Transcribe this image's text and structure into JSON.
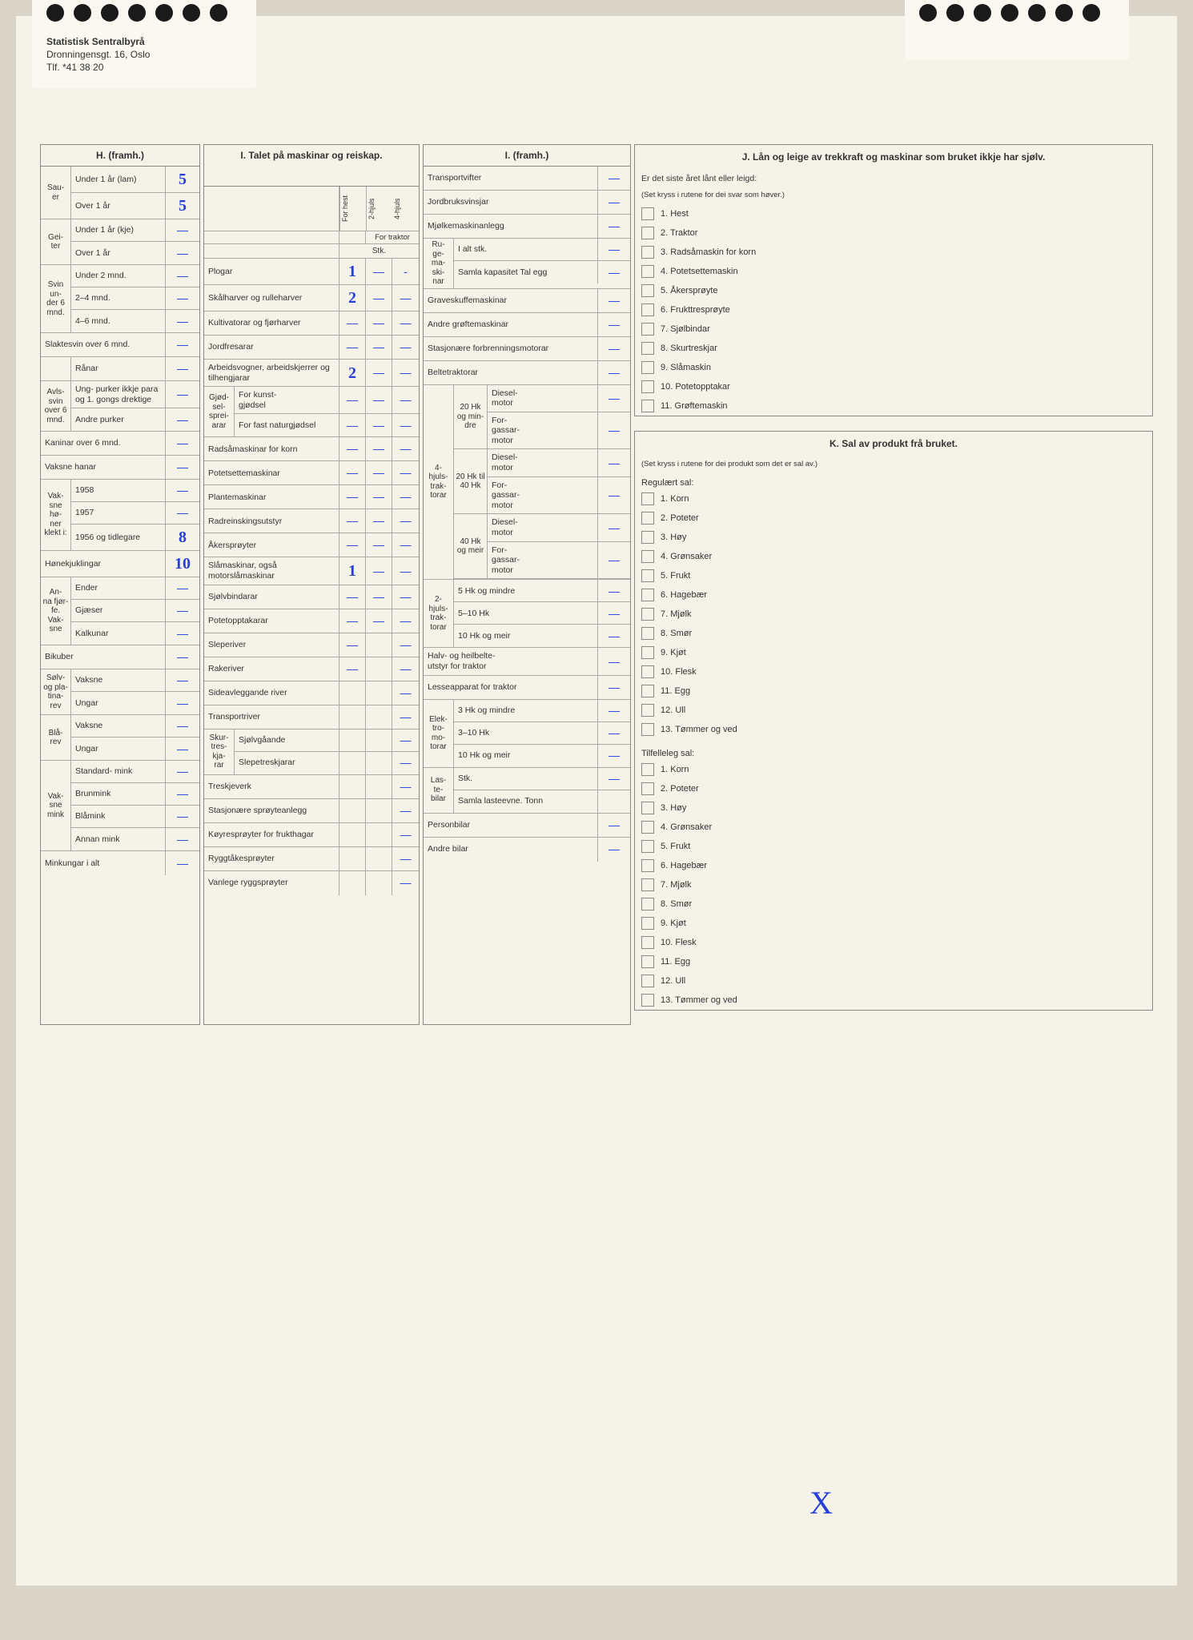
{
  "letterhead": {
    "org": "Statistisk Sentralbyrå",
    "addr": "Dronningensgt. 16, Oslo",
    "tlf": "Tlf. *41 38 20"
  },
  "secH": {
    "title": "H. (framh.)",
    "groups": [
      {
        "side": "Sau-\ner",
        "rows": [
          {
            "label": "Under 1 år (lam)",
            "val": "5"
          },
          {
            "label": "Over 1 år",
            "val": "5"
          }
        ]
      },
      {
        "side": "Gei-\nter",
        "rows": [
          {
            "label": "Under 1 år (kje)",
            "val": "—"
          },
          {
            "label": "Over 1 år",
            "val": "—"
          }
        ]
      },
      {
        "side": "Svin un-\nder 6 mnd.",
        "rows": [
          {
            "label": "Under 2 mnd.",
            "val": "—"
          },
          {
            "label": "2–4 mnd.",
            "val": "—"
          },
          {
            "label": "4–6 mnd.",
            "val": "—"
          }
        ]
      }
    ],
    "singleRows1": [
      {
        "label": "Slaktesvin over 6 mnd.",
        "val": "—"
      },
      {
        "label2": "Rånar",
        "val": "—"
      }
    ],
    "avls": {
      "side": "Avls-\nsvin over 6 mnd.",
      "rows": [
        {
          "label": "Ung-\npurker ikkje para og 1. gongs drektige",
          "val": "—"
        },
        {
          "label": "Andre purker",
          "val": "—"
        }
      ]
    },
    "singleRows2": [
      {
        "label": "Kaninar over 6 mnd.",
        "val": "—"
      },
      {
        "label": "Vaksne hanar",
        "val": "—"
      }
    ],
    "honer": {
      "side": "Vak-\nsne hø-\nner klekt i:",
      "rows": [
        {
          "label": "1958",
          "val": "—"
        },
        {
          "label": "1957",
          "val": "—"
        },
        {
          "label": "1956 og tidlegare",
          "val": "8"
        }
      ]
    },
    "hone": {
      "label": "Hønekjuklingar",
      "val": "10"
    },
    "anna": {
      "side": "An-\nna fjør-\nfe. Vak-\nsne",
      "rows": [
        {
          "label": "Ender",
          "val": "—"
        },
        {
          "label": "Gjæser",
          "val": "—"
        },
        {
          "label": "Kalkunar",
          "val": "—"
        }
      ]
    },
    "bikuber": {
      "label": "Bikuber",
      "val": "—"
    },
    "rev1": {
      "side": "Sølv- og pla-\ntina-\nrev",
      "rows": [
        {
          "label": "Vaksne",
          "val": "—"
        },
        {
          "label": "Ungar",
          "val": "—"
        }
      ]
    },
    "rev2": {
      "side": "Blå-\nrev",
      "rows": [
        {
          "label": "Vaksne",
          "val": "—"
        },
        {
          "label": "Ungar",
          "val": "—"
        }
      ]
    },
    "mink": {
      "side": "Vak-\nsne mink",
      "rows": [
        {
          "label": "Standard-\nmink",
          "val": "—"
        },
        {
          "label": "Brunmink",
          "val": "—"
        },
        {
          "label": "Blåmink",
          "val": "—"
        },
        {
          "label": "Annan mink",
          "val": "—"
        }
      ]
    },
    "minkungar": {
      "label": "Minkungar i alt",
      "val": "—"
    }
  },
  "secI1": {
    "title": "I. Talet på maskinar og reiskap.",
    "headCols": {
      "top": "For traktor",
      "c1": "For hest",
      "c2": "2-hjuls",
      "c3": "4-hjuls",
      "stk": "Stk."
    },
    "rows": [
      {
        "label": "Plogar",
        "v": [
          "1",
          "—",
          "-"
        ]
      },
      {
        "label": "Skålharver og rulleharver",
        "v": [
          "2",
          "—",
          "—"
        ]
      },
      {
        "label": "Kultivatorar og fjørharver",
        "v": [
          "—",
          "—",
          "—"
        ]
      },
      {
        "label": "Jordfresarar",
        "v": [
          "—",
          "—",
          "—"
        ]
      },
      {
        "label": "Arbeidsvogner, arbeidskjerrer og tilhengjarar",
        "v": [
          "2",
          "—",
          "—"
        ]
      }
    ],
    "gjod": {
      "side": "Gjød-\nsel-\nsprei-\narar",
      "rows": [
        {
          "label": "For kunst-\ngjødsel",
          "v": [
            "—",
            "—",
            "—"
          ]
        },
        {
          "label": "For fast naturgjødsel",
          "v": [
            "—",
            "—",
            "—"
          ]
        }
      ]
    },
    "rows2": [
      {
        "label": "Radsåmaskinar for korn",
        "v": [
          "—",
          "—",
          "—"
        ]
      },
      {
        "label": "Potetsettemaskinar",
        "v": [
          "—",
          "—",
          "—"
        ]
      },
      {
        "label": "Plantemaskinar",
        "v": [
          "—",
          "—",
          "—"
        ]
      },
      {
        "label": "Radreinskingsutstyr",
        "v": [
          "—",
          "—",
          "—"
        ]
      },
      {
        "label": "Åkersprøyter",
        "v": [
          "—",
          "—",
          "—"
        ]
      },
      {
        "label": "Slåmaskinar, også motorslåmaskinar",
        "v": [
          "1",
          "—",
          "—"
        ]
      },
      {
        "label": "Sjølvbindarar",
        "v": [
          "—",
          "—",
          "—"
        ]
      },
      {
        "label": "Potetopptakarar",
        "v": [
          "—",
          "—",
          "—"
        ]
      },
      {
        "label": "Sleperiver",
        "v": [
          "—",
          "",
          "—"
        ]
      },
      {
        "label": "Rakeriver",
        "v": [
          "—",
          "",
          "—"
        ]
      },
      {
        "label": "Sideavleggande river",
        "v": [
          "",
          "",
          "—"
        ]
      },
      {
        "label": "Transportriver",
        "v": [
          "",
          "",
          "—"
        ]
      }
    ],
    "skur": {
      "side": "Skur-\ntres-\nkja-\nrar",
      "rows": [
        {
          "label": "Sjølvgåande",
          "v": [
            "",
            "",
            "—"
          ]
        },
        {
          "label": "Slepetreskjarar",
          "v": [
            "",
            "",
            "—"
          ]
        }
      ]
    },
    "rows3": [
      {
        "label": "Treskjeverk",
        "v": [
          "",
          "",
          "—"
        ]
      },
      {
        "label": "Stasjonære sprøyteanlegg",
        "v": [
          "",
          "",
          "—"
        ]
      },
      {
        "label": "Køyresprøyter for frukthagar",
        "v": [
          "",
          "",
          "—"
        ]
      },
      {
        "label": "Ryggtåkesprøyter",
        "v": [
          "",
          "",
          "—"
        ]
      },
      {
        "label": "Vanlege ryggsprøyter",
        "v": [
          "",
          "",
          "—"
        ]
      }
    ]
  },
  "secI2": {
    "title": "I. (framh.)",
    "rows1": [
      {
        "label": "Transportvifter",
        "val": "—"
      },
      {
        "label": "Jordbruksvinsjar",
        "val": "—"
      },
      {
        "label": "Mjølkemaskinanlegg",
        "val": "—"
      }
    ],
    "ruge": {
      "side": "Ru-\nge-\nma-\nski-\nnar",
      "rows": [
        {
          "label": "I alt stk.",
          "val": "—"
        },
        {
          "label": "Samla kapasitet Tal egg",
          "val": "—"
        }
      ]
    },
    "rows2": [
      {
        "label": "Graveskuffemaskinar",
        "val": "—"
      },
      {
        "label": "Andre grøftemaskinar",
        "val": "—"
      },
      {
        "label": "Stasjonære forbrenningsmotorar",
        "val": "—"
      },
      {
        "label": "Beltetraktorar",
        "val": "—"
      }
    ],
    "trakt4": {
      "side": "4-\nhjuls-\ntrak-\ntorar",
      "groups": [
        {
          "sub": "20 Hk og min-\ndre",
          "rows": [
            {
              "label": "Diesel-\nmotor",
              "val": "—"
            },
            {
              "label": "For-\ngassar-\nmotor",
              "val": "—"
            }
          ]
        },
        {
          "sub": "20 Hk til 40 Hk",
          "rows": [
            {
              "label": "Diesel-\nmotor",
              "val": "—"
            },
            {
              "label": "For-\ngassar-\nmotor",
              "val": "—"
            }
          ]
        },
        {
          "sub": "40 Hk og meir",
          "rows": [
            {
              "label": "Diesel-\nmotor",
              "val": "—"
            },
            {
              "label": "For-\ngassar-\nmotor",
              "val": "—"
            }
          ]
        }
      ]
    },
    "trakt2": {
      "side": "2-\nhjuls-\ntrak-\ntorar",
      "rows": [
        {
          "label": "5 Hk og mindre",
          "val": "—"
        },
        {
          "label": "5–10 Hk",
          "val": "—"
        },
        {
          "label": "10 Hk og meir",
          "val": "—"
        }
      ]
    },
    "halv": {
      "label": "Halv- og heilbelte-\nutstyr for traktor",
      "val": "—"
    },
    "lesse": {
      "label": "Lesseapparat for traktor",
      "val": "—"
    },
    "elek": {
      "side": "Elek-\ntro-\nmo-\ntorar",
      "rows": [
        {
          "label": "3 Hk og mindre",
          "val": "—"
        },
        {
          "label": "3–10 Hk",
          "val": "—"
        },
        {
          "label": "10 Hk og meir",
          "val": "—"
        }
      ]
    },
    "laste": {
      "side": "Las-\nte-\nbilar",
      "rows": [
        {
          "label": "Stk.",
          "val": "—"
        },
        {
          "label": "Samla lasteevne. Tonn",
          "val": ""
        }
      ]
    },
    "rows3": [
      {
        "label": "Personbilar",
        "val": "—"
      },
      {
        "label": "Andre bilar",
        "val": "—"
      }
    ]
  },
  "secJ": {
    "title": "J. Lån og leige av trekkraft og maskinar som bruket ikkje har sjølv.",
    "sub1": "Er det siste året lånt eller leigd:",
    "sub2": "(Set kryss i rutene for dei svar som høver.)",
    "items": [
      "1. Hest",
      "2. Traktor",
      "3. Radsåmaskin for korn",
      "4. Potetsettemaskin",
      "5. Åkersprøyte",
      "6. Frukttresprøyte",
      "7. Sjølbindar",
      "8. Skurtreskjar",
      "9. Slåmaskin",
      "10. Potetopptakar",
      "11. Grøftemaskin"
    ]
  },
  "secK": {
    "title": "K. Sal av produkt frå bruket.",
    "sub": "(Set kryss i rutene for dei produkt som det er sal av.)",
    "reg": "Regulært sal:",
    "tilf": "Tilfelleleg sal:",
    "items": [
      "1. Korn",
      "2. Poteter",
      "3. Høy",
      "4. Grønsaker",
      "5. Frukt",
      "6. Hagebær",
      "7. Mjølk",
      "8. Smør",
      "9. Kjøt",
      "10. Flesk",
      "11. Egg",
      "12. Ull",
      "13. Tømmer og ved"
    ]
  }
}
